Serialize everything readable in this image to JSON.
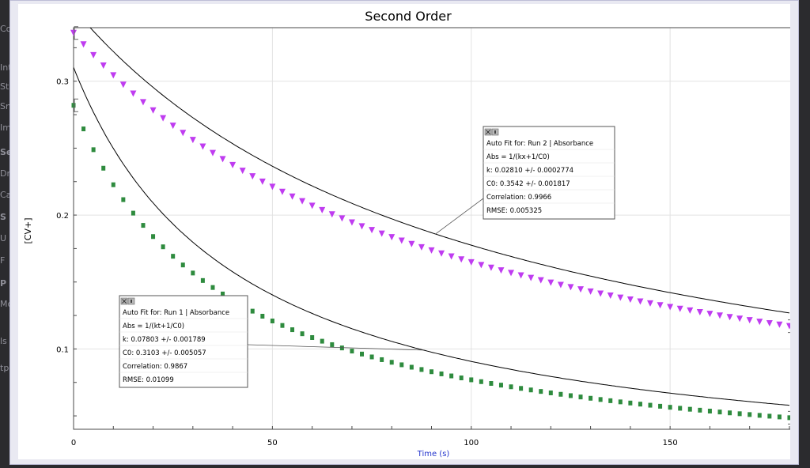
{
  "chart_data": {
    "type": "scatter",
    "title": "Second Order",
    "xlabel": "Time (s)",
    "ylabel": "[CV+]",
    "xlim": [
      0,
      181
    ],
    "ylim": [
      0.04,
      0.34
    ],
    "xticks": [
      0,
      50,
      100,
      150
    ],
    "yticks": [
      0.1,
      0.2,
      0.3
    ],
    "grid": true,
    "colors": {
      "run1": "#2e8b3e",
      "run2": "#bf3cf0",
      "fit": "#000000",
      "xlabel": "#2233cc"
    },
    "series": [
      {
        "name": "Run 1 | Absorbance",
        "marker": "square",
        "x_start": 0,
        "x_step": 2.5,
        "x_end": 180,
        "model": "1/(k*x+1/C0)",
        "fit_k": 0.07803,
        "fit_C0": 0.3103,
        "data_k": 0.0945,
        "data_C0": 0.282
      },
      {
        "name": "Run 2 | Absorbance",
        "marker": "triangle-down",
        "x_start": 0,
        "x_step": 2.5,
        "x_end": 180,
        "model": "1/(k*x+1/C0)",
        "fit_k": 0.0281,
        "fit_C0": 0.3542,
        "data_k": 0.03095,
        "data_C0": 0.336
      }
    ],
    "fits": [
      {
        "lines": [
          "Auto Fit for: Run 2 | Absorbance",
          "Abs = 1/(kx+1/C0)",
          "k: 0.02810 +/- 0.0002774",
          "C0: 0.3542 +/- 0.001817",
          "Correlation: 0.9966",
          "RMSE: 0.005325"
        ],
        "anchor_x": 91
      },
      {
        "lines": [
          "Auto Fit for: Run 1 | Absorbance",
          "Abs = 1/(kt+1/C0)",
          "k: 0.07803 +/- 0.001789",
          "C0: 0.3103 +/- 0.005057",
          "Correlation: 0.9867",
          "RMSE: 0.01099"
        ],
        "anchor_x": 88
      }
    ]
  },
  "background": {
    "left_sidebar_fragments": [
      "Co",
      "Int",
      "Sta",
      "Sn",
      "Im",
      "Se",
      "Dr",
      "Ca",
      "S",
      "U",
      "F",
      "P",
      "Mc",
      "ls",
      "tp"
    ]
  }
}
